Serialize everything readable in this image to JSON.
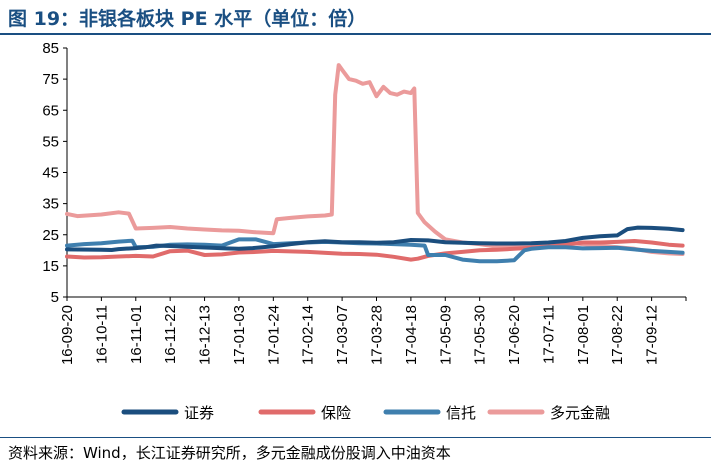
{
  "figure": {
    "title": "图 19：非银各板块 PE 水平（单位：倍）",
    "source": "资料来源：Wind，长江证券研究所，多元金融成份股调入中油资本"
  },
  "chart_data": {
    "type": "line",
    "y_ticks": [
      5,
      15,
      25,
      35,
      45,
      55,
      65,
      75,
      85
    ],
    "ylim": [
      5,
      85
    ],
    "x_ticks": [
      "16-09-20",
      "16-10-11",
      "16-11-01",
      "16-11-22",
      "16-12-13",
      "17-01-03",
      "17-01-24",
      "17-02-14",
      "17-03-07",
      "17-03-28",
      "17-04-18",
      "17-05-09",
      "17-05-30",
      "17-06-20",
      "17-07-11",
      "17-08-01",
      "17-08-22",
      "17-09-12"
    ],
    "legend_position": "bottom",
    "grid": false,
    "series": [
      {
        "name": "证券",
        "color": "#1b4e7e",
        "points": [
          [
            0,
            20.3
          ],
          [
            1,
            20.2
          ],
          [
            1.3,
            20.1
          ],
          [
            1.5,
            20.4
          ],
          [
            2,
            20.7
          ],
          [
            2.3,
            21.0
          ],
          [
            2.6,
            21.5
          ],
          [
            3,
            21.4
          ],
          [
            3.4,
            21.2
          ],
          [
            3.8,
            21.0
          ],
          [
            4.2,
            20.8
          ],
          [
            4.6,
            20.6
          ],
          [
            5,
            20.5
          ],
          [
            5.4,
            20.7
          ],
          [
            6,
            21.3
          ],
          [
            6.5,
            22.0
          ],
          [
            7,
            22.6
          ],
          [
            7.5,
            22.9
          ],
          [
            8,
            22.6
          ],
          [
            8.5,
            22.6
          ],
          [
            9,
            22.4
          ],
          [
            9.5,
            22.6
          ],
          [
            10,
            23.3
          ],
          [
            10.5,
            23.2
          ],
          [
            11,
            22.6
          ],
          [
            11.5,
            22.4
          ],
          [
            12,
            22.3
          ],
          [
            12.5,
            22.2
          ],
          [
            13,
            22.2
          ],
          [
            13.5,
            22.3
          ],
          [
            14,
            22.5
          ],
          [
            14.5,
            23.0
          ],
          [
            15,
            24.0
          ],
          [
            15.5,
            24.5
          ],
          [
            16,
            24.8
          ],
          [
            16.3,
            26.8
          ],
          [
            16.6,
            27.3
          ],
          [
            17,
            27.2
          ],
          [
            17.5,
            26.9
          ],
          [
            17.9,
            26.5
          ]
        ]
      },
      {
        "name": "保险",
        "color": "#e06b6b",
        "points": [
          [
            0,
            18.0
          ],
          [
            0.5,
            17.7
          ],
          [
            1,
            17.8
          ],
          [
            1.5,
            18.0
          ],
          [
            2,
            18.2
          ],
          [
            2.5,
            18.0
          ],
          [
            3,
            19.7
          ],
          [
            3.5,
            19.9
          ],
          [
            4,
            18.5
          ],
          [
            4.5,
            18.7
          ],
          [
            5,
            19.3
          ],
          [
            5.5,
            19.5
          ],
          [
            6,
            19.8
          ],
          [
            7,
            19.5
          ],
          [
            8,
            18.9
          ],
          [
            8.5,
            18.8
          ],
          [
            9,
            18.6
          ],
          [
            9.5,
            17.9
          ],
          [
            10,
            17.0
          ],
          [
            10.2,
            17.3
          ],
          [
            10.5,
            18.2
          ],
          [
            11,
            19.0
          ],
          [
            11.5,
            19.5
          ],
          [
            12,
            20.0
          ],
          [
            12.5,
            20.2
          ],
          [
            13,
            20.5
          ],
          [
            13.5,
            20.8
          ],
          [
            14,
            21.2
          ],
          [
            14.5,
            21.8
          ],
          [
            15,
            22.5
          ],
          [
            15.5,
            22.5
          ],
          [
            16,
            22.7
          ],
          [
            16.5,
            23.0
          ],
          [
            17,
            22.5
          ],
          [
            17.5,
            21.8
          ],
          [
            17.9,
            21.5
          ]
        ]
      },
      {
        "name": "信托",
        "color": "#3f7fae",
        "points": [
          [
            0,
            21.5
          ],
          [
            0.5,
            22.0
          ],
          [
            1,
            22.3
          ],
          [
            1.5,
            22.8
          ],
          [
            1.9,
            23.1
          ],
          [
            2,
            21.0
          ],
          [
            2.5,
            21.1
          ],
          [
            3,
            21.8
          ],
          [
            3.5,
            21.9
          ],
          [
            4,
            21.8
          ],
          [
            4.5,
            21.5
          ],
          [
            5,
            23.5
          ],
          [
            5.5,
            23.5
          ],
          [
            6,
            22.0
          ],
          [
            6.5,
            22.3
          ],
          [
            7,
            22.5
          ],
          [
            7.5,
            22.7
          ],
          [
            8,
            22.5
          ],
          [
            8.5,
            22.3
          ],
          [
            9,
            22.2
          ],
          [
            9.5,
            22.0
          ],
          [
            10,
            21.8
          ],
          [
            10.4,
            21.5
          ],
          [
            10.5,
            18.5
          ],
          [
            11,
            18.5
          ],
          [
            11.5,
            17.0
          ],
          [
            12,
            16.5
          ],
          [
            12.5,
            16.5
          ],
          [
            13,
            16.8
          ],
          [
            13.3,
            20.0
          ],
          [
            13.5,
            20.5
          ],
          [
            14,
            21.0
          ],
          [
            14.5,
            21.0
          ],
          [
            15,
            20.6
          ],
          [
            15.5,
            20.7
          ],
          [
            16,
            20.8
          ],
          [
            16.5,
            20.3
          ],
          [
            17,
            19.8
          ],
          [
            17.5,
            19.5
          ],
          [
            17.9,
            19.2
          ]
        ]
      },
      {
        "name": "多元金融",
        "color": "#eb9b9b",
        "points": [
          [
            0,
            31.7
          ],
          [
            0.3,
            31.0
          ],
          [
            1,
            31.5
          ],
          [
            1.5,
            32.2
          ],
          [
            1.8,
            31.8
          ],
          [
            2,
            27.0
          ],
          [
            2.5,
            27.2
          ],
          [
            3,
            27.5
          ],
          [
            3.5,
            27.0
          ],
          [
            4,
            26.7
          ],
          [
            4.5,
            26.4
          ],
          [
            5,
            26.3
          ],
          [
            5.5,
            25.8
          ],
          [
            6,
            25.5
          ],
          [
            6.1,
            30.0
          ],
          [
            6.5,
            30.4
          ],
          [
            7,
            30.9
          ],
          [
            7.5,
            31.2
          ],
          [
            7.7,
            31.5
          ],
          [
            7.8,
            70.0
          ],
          [
            7.9,
            79.5
          ],
          [
            8,
            78.0
          ],
          [
            8.2,
            75.0
          ],
          [
            8.4,
            74.5
          ],
          [
            8.6,
            73.5
          ],
          [
            8.8,
            74.0
          ],
          [
            9,
            69.5
          ],
          [
            9.2,
            72.5
          ],
          [
            9.4,
            70.5
          ],
          [
            9.6,
            70.0
          ],
          [
            9.8,
            71.0
          ],
          [
            10,
            70.5
          ],
          [
            10.1,
            72.0
          ],
          [
            10.2,
            32.0
          ],
          [
            10.4,
            29.0
          ],
          [
            10.7,
            26.0
          ],
          [
            11,
            23.5
          ],
          [
            11.5,
            22.5
          ],
          [
            12,
            22.0
          ],
          [
            12.5,
            21.2
          ],
          [
            13,
            21.0
          ],
          [
            13.5,
            21.5
          ],
          [
            14,
            21.5
          ],
          [
            14.5,
            22.5
          ],
          [
            15,
            22.0
          ],
          [
            15.5,
            21.5
          ],
          [
            16,
            21.0
          ],
          [
            16.5,
            20.5
          ],
          [
            17,
            19.5
          ],
          [
            17.5,
            19.0
          ],
          [
            17.9,
            18.8
          ]
        ]
      }
    ]
  }
}
